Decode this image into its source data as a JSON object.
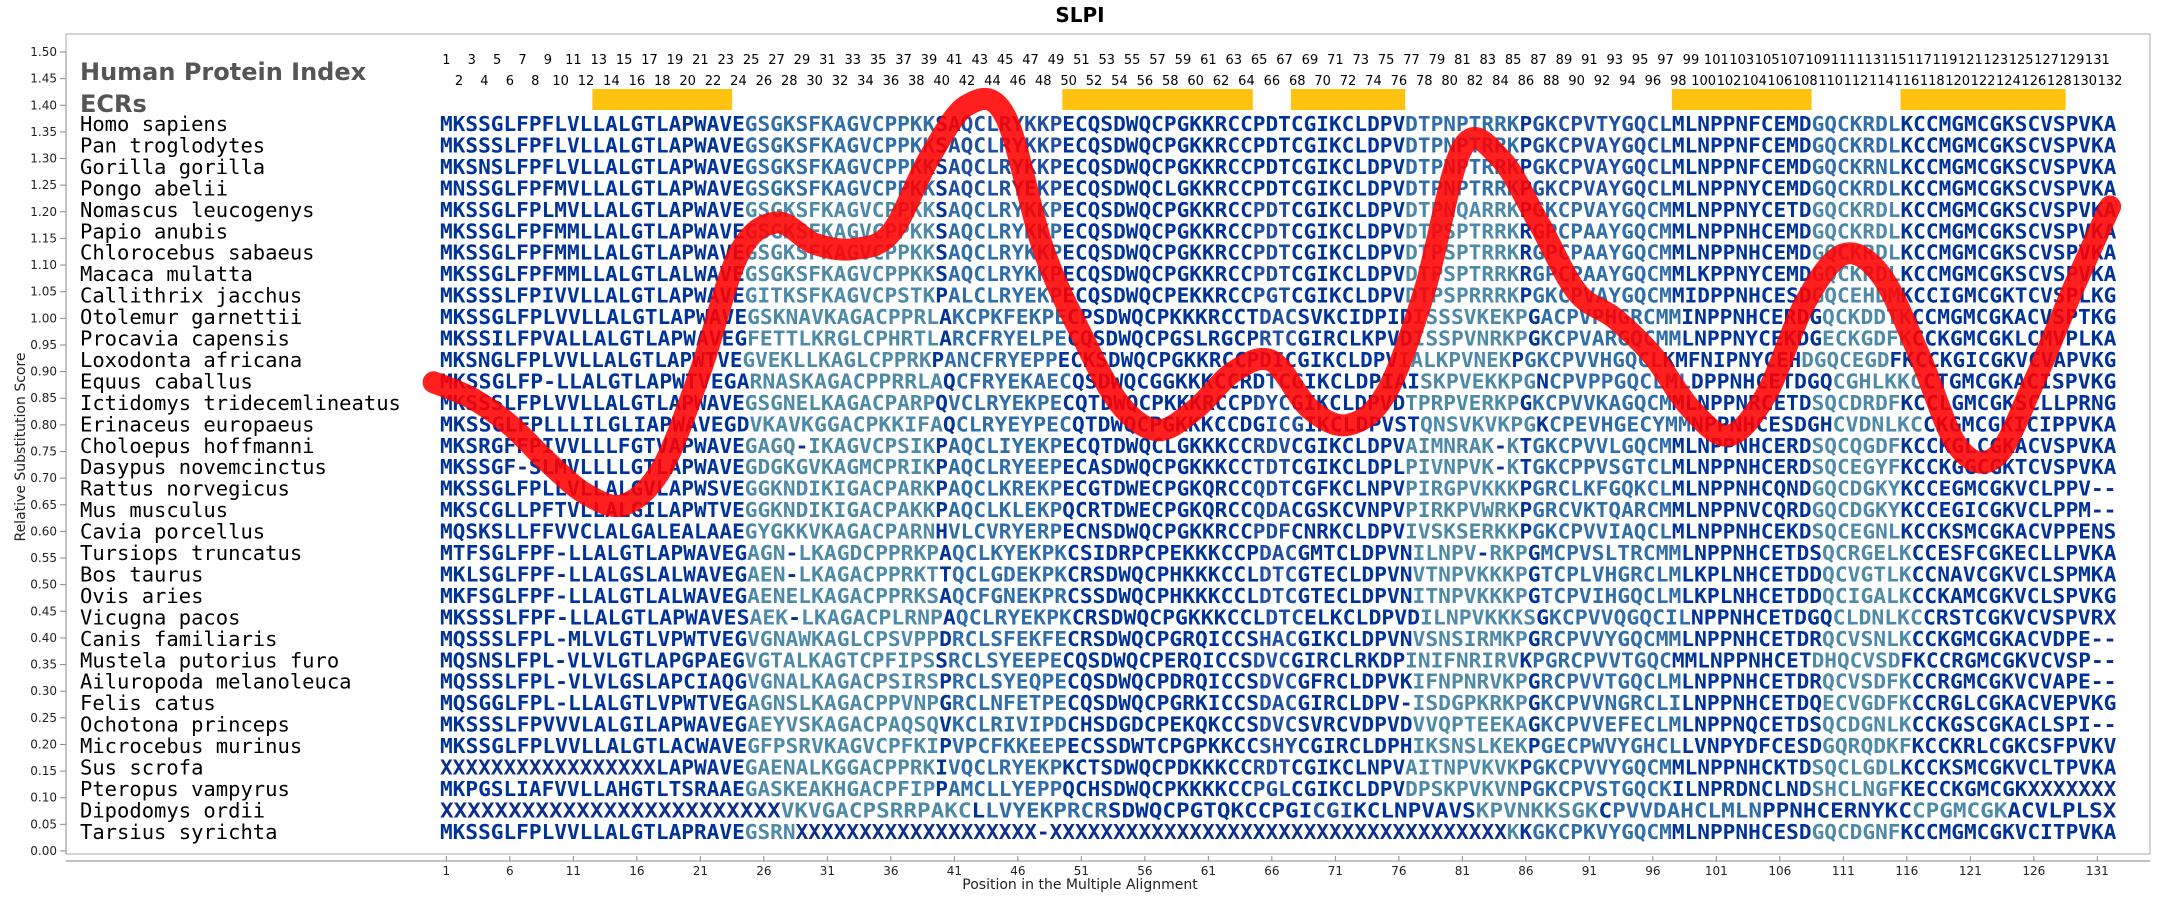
{
  "chart_data": {
    "type": "line",
    "title": "SLPI",
    "xlabel": "Position in the Multiple Alignment",
    "ylabel": "Relative Substitution Score",
    "legend": [
      "Human Protein Index",
      "ECRs"
    ],
    "ylim": [
      0.0,
      1.5
    ],
    "y_ticks": [
      "0.00",
      "0.05",
      "0.10",
      "0.15",
      "0.20",
      "0.25",
      "0.30",
      "0.35",
      "0.40",
      "0.45",
      "0.50",
      "0.55",
      "0.60",
      "0.65",
      "0.70",
      "0.75",
      "0.80",
      "0.85",
      "0.90",
      "0.95",
      "1.00",
      "1.05",
      "1.10",
      "1.15",
      "1.20",
      "1.25",
      "1.30",
      "1.35",
      "1.40",
      "1.45",
      "1.50"
    ],
    "x_ticks": [
      "1",
      "6",
      "11",
      "16",
      "21",
      "26",
      "31",
      "36",
      "41",
      "46",
      "51",
      "56",
      "61",
      "66",
      "71",
      "76",
      "81",
      "86",
      "91",
      "96",
      "101",
      "106",
      "111",
      "116",
      "121",
      "126",
      "131"
    ],
    "xlim": [
      1,
      132
    ],
    "human_index_odd": [
      "1",
      "3",
      "5",
      "7",
      "9",
      "11",
      "13",
      "15",
      "17",
      "19",
      "21",
      "23",
      "25",
      "27",
      "29",
      "31",
      "33",
      "35",
      "37",
      "39",
      "41",
      "43",
      "45",
      "47",
      "49",
      "51",
      "53",
      "55",
      "57",
      "59",
      "61",
      "63",
      "65",
      "67",
      "69",
      "71",
      "73",
      "75",
      "77",
      "79",
      "81",
      "83",
      "85",
      "87",
      "89",
      "91",
      "93",
      "95",
      "97",
      "99",
      "101",
      "103",
      "105",
      "107",
      "109",
      "111",
      "113",
      "115",
      "117",
      "119",
      "121",
      "123",
      "125",
      "127",
      "129",
      "131"
    ],
    "human_index_even": [
      "2",
      "4",
      "6",
      "8",
      "10",
      "12",
      "14",
      "16",
      "18",
      "20",
      "22",
      "24",
      "26",
      "28",
      "30",
      "32",
      "34",
      "36",
      "38",
      "40",
      "42",
      "44",
      "46",
      "48",
      "50",
      "52",
      "54",
      "56",
      "58",
      "60",
      "62",
      "64",
      "66",
      "68",
      "70",
      "72",
      "74",
      "76",
      "78",
      "80",
      "82",
      "84",
      "86",
      "88",
      "90",
      "92",
      "94",
      "96",
      "98",
      "100",
      "102",
      "104",
      "106",
      "108",
      "110",
      "112",
      "114",
      "116",
      "118",
      "120",
      "122",
      "124",
      "126",
      "128",
      "130",
      "132"
    ],
    "ecrs": [
      [
        13,
        23
      ],
      [
        50,
        64
      ],
      [
        68,
        76
      ],
      [
        98,
        108
      ],
      [
        116,
        128
      ]
    ],
    "series": [
      {
        "x": [
          0,
          3,
          6,
          9,
          12,
          15,
          18,
          21,
          24,
          27,
          30,
          33,
          36,
          39,
          42,
          45,
          48,
          51,
          54,
          57,
          60,
          63,
          66,
          69,
          72,
          75,
          78,
          81,
          84,
          87,
          90,
          93,
          96,
          99,
          102,
          105,
          108,
          111,
          114,
          117,
          120,
          123,
          126,
          129,
          132
        ],
        "y": [
          0.88,
          0.85,
          0.8,
          0.73,
          0.67,
          0.65,
          0.72,
          0.9,
          1.12,
          1.18,
          1.14,
          1.13,
          1.16,
          1.3,
          1.4,
          1.38,
          1.13,
          0.97,
          0.84,
          0.79,
          0.83,
          0.9,
          0.92,
          0.83,
          0.8,
          0.86,
          1.05,
          1.32,
          1.3,
          1.18,
          1.05,
          1.0,
          0.93,
          0.83,
          0.78,
          0.86,
          1.03,
          1.12,
          1.08,
          0.93,
          0.76,
          0.74,
          0.88,
          1.05,
          1.21
        ]
      }
    ],
    "species": [
      {
        "name": "Homo sapiens",
        "seq": "MKSSGLFPFLVLLALGTLAPWAVEGSGKSFKAGVCPPKKSAQCLRYKKPECQSDWQCPGKKRCCPDTCGIKCLDPVDTPNPTRRKPGKCPVTYGQCLMLNPPNFCEMDGQCKRDLKCCMGMCGKSCVSPVKA"
      },
      {
        "name": "Pan troglodytes",
        "seq": "MKSSSLFPFLVLLALGTLAPWAVEGSGKSFKAGVCPPKKSAQCLRYKKPECQSDWQCPGKKRCCPDTCGIKCLDPVDTPNPTRRKPGKCPVAYGQCLMLNPPNFCEMDGQCKRDLKCCMGMCGKSCVSPVKA"
      },
      {
        "name": "Gorilla gorilla",
        "seq": "MKSNSLFPFLVLLALGTLAPWAVEGSGKSFKAGVCPPKKSAQCLRYKKPECQSDWQCPGKKRCCPDTCGIKCLDPVDTPNPTRRKPGKCPVAYGQCLMLNPPNFCEMDGQCKRNLKCCMGMCGKSCVSPVKA"
      },
      {
        "name": "Pongo abelii",
        "seq": "MNSSGLFPFMVLLALGTLAPWAVEGSGKSFKAGVCPPKKSAQCLRYEKPECQSDWQCLGKKRCCPDTCGIKCLDPVDTPNPTRRKPGKCPVAYGQCLMLNPPNYCEMDGQCKRDLKCCMGMCGKSCVSPVKA"
      },
      {
        "name": "Nomascus leucogenys",
        "seq": "MKSSGLFPLMVLLALGTLAPWAVEGSGKSFKAGVCPPKKSAQCLRYKKPECQSDWQCPGKKRCCPDTCGIKCLDPVDTPNQARRKPGKCPVAYGQCMMLNPPNYCETDGQCKRDLKCCMGMCGKSCVSPVKA"
      },
      {
        "name": "Papio anubis",
        "seq": "MKSSGLFPFMMLLALGTLAPWAVEGSGKSFKAGVCPPKKSAQCLRYKKPECQSDWQCPGKKRCCPDTCGIKCLDPVDTPSPTRRKRGPCPAAYGQCMMLNPPNHCEMDGQCKRDLKCCMGMCGKSCVSPVKA"
      },
      {
        "name": "Chlorocebus sabaeus",
        "seq": "MKSSGLFPFMMLLALGTLAPWAVEGSGKSFKAGVCPPKKSAQCLRYKKPECQSDWQCPGKKRCCPDTCGIKCLDPVDTPSPTRRKRGPCPAAYGQCMMLNPPNHCEMDGQCKRDLKCCMGMCGKSCVSPVKA"
      },
      {
        "name": "Macaca mulatta",
        "seq": "MKSSGLFPFMMLLALGTLALWAVEGSGKSFKAGVCPPKKSAQCLRYKKPECQSDWQCPGKKRCCPDTCGIKCLDPVDTPSPTRRKRGPCPAAYGQCMMLKPPNYCEMDGQCKRDLKCCMGMCGKSCVSPVKA"
      },
      {
        "name": "Callithrix jacchus",
        "seq": "MKSSSLFPIVVLLALGTLAPWAVEGITKSFKAGVCPSTKPALCLRYEKPECQSDWQCPEKKRCCPGTCGIKCLDPVDTPSPRRRKPGKCPVAYGQCMMIDPPNHCESDGQCEHDMKCCIGMCGKTCVSPLKG"
      },
      {
        "name": "Otolemur garnettii",
        "seq": "MKSSGLFPLVVLLALGTLAPWAVEGSKNAVKAGACPPRLAKCPKFEKPECPSDWQCPKKKRCCTDACSVKCIDPIDISSSVKEKPGACPVPHGRCMMINPPNHCERDGQCKDDTKCCMGMCGKACVSPTKG"
      },
      {
        "name": "Procavia capensis",
        "seq": "MKSSILFPVALLALGTLAPWAVEGFETTLKRGLCPHRTLARCFRYELPECQSDWQCPGSLRGCPRTCGIRCLKPVDISSPVNRKPGKCPVARGQCMMLNPPNYCEKDGECKGDFKCCKGMCGKLCMVPLKA"
      },
      {
        "name": "Loxodonta africana",
        "seq": "MKSNGLFPLVVLLALGTLAPWTVEGVEKLLKAGLCPPRKPANCFRYEPPECKSDWQCPGKKRCCPDICGIKCLDPVIALKPVNEKPGKCPVVHGQCLKMFNIPNYCEHDGQCEGDFKCCKGICGKVCVAPVKG"
      },
      {
        "name": "Equus caballus",
        "seq": "MKSSGLFP-LLALGTLAPWTVEGARNASKAGACPPRRLAQCFRYEKAECQSDWQCGGKKKCCRDTCGIKCLDPIAISKPVEKKPGNCPVPPGQCLMLDPPNHCETDGQCGHLKKCCTGMCGKACISPVKG"
      },
      {
        "name": "Ictidomys tridecemlineatus",
        "seq": "MKSSSLFPLVVLLALGTLAPWAVEGSGNELKAGACPARPQVCLRYEKPECQTDWQCPKKKRCCPDYCGIKCLDPVDTPRPVERKPGKCPVVKAGQCMMLNPPNRCETDSQCDRDFKCCLGMCGKSCLLPRNG"
      },
      {
        "name": "Erinaceus europaeus",
        "seq": "MKSSGLFPLLLILGLIAPWAVEGDVKAVKGGACPKKIFAQCLRYEYPECQTDWQCPGKKKCCDGICGIKCLDPVSTQNSVKVKPGKCPEVHGECYMMNPPNHCESDGHCVDNLKCCKGMCGKICIPPVKA"
      },
      {
        "name": "Choloepus hoffmanni",
        "seq": "MKSRGFFPIVVLLLFGTVAPWAVEGAGQ-IKAGVCPSIKPAQCLIYEKPECQTDWQCLGKKKCCRDVCGIKCLDPVAIMNRAK-KTGKCPVVLGQCMMLNPPNHCERDSQCQGDFKCCKGLCGKACVSPVKA"
      },
      {
        "name": "Dasypus novemcinctus",
        "seq": "MKSSGF-SLMVLLLLGTLAPWAVEGDGKGVKAGMCPRIKPAQCLRYEEPECASDWQCPGKKKCCTDTCGIKCLDPLPIVNPVK-KTGKCPPVSGTCLMLNPPNHCERDSQCEGYFKCCKGGCGKTCVSPVKA"
      },
      {
        "name": "Rattus norvegicus",
        "seq": "MKSSGLFPLLVLLALGVLAPWSVEGGKNDIKIGACPARKPAQCLKREKPECGTDWECPGKQRCCQDTCGFKCLNPVPIRGPVKKKPGRCLKFGQKCLMLNPPNHCQNDGQCDGKYKCCEGMCGKVCLPPV--"
      },
      {
        "name": "Mus musculus",
        "seq": "MKSCGLLPFTVLLALGILAPWTVEGGKNDIKIGACPAKKPAQCLKLEKPQCRTDWECPGKQRCCQDACGSKCVNPVPIRKPVWRKPGRCVKTQARCMMLNPPNVCQRDGQCDGKYKCCEGICGKVCLPPM--"
      },
      {
        "name": "Cavia porcellus",
        "seq": "MQSKSLLFFVVCLALGALEALAAEGYGKKVKAGACPARNHVLCVRYERPECNSDWQCPGKKRCCPDFCNRKCLDPVIVSKSERKKPGKCPVVIAQCLMLNPPNHCEKDSQCEGNLKCCKSMCGKACVPPENS"
      },
      {
        "name": "Tursiops truncatus",
        "seq": "MTFSGLFPF-LLALGTLAPWAVEGAGN-LKAGDCPPRKPAQCLKYEKPKCSIDRPCPEKKKCCPDACGMTCLDPVNILNPV-RKPGMCPVSLTRCMMLNPPNHCETDSQCRGELKCCESFCGKECLLPVKA"
      },
      {
        "name": "Bos taurus",
        "seq": "MKLSGLFPF-LLALGSLALWAVEGAEN-LKAGACPPRKTTQCLGDEKPKCRSDWQCPHKKKCCLDTCGTECLDPVNVTNPVKKKPGTCPLVHGRCLMLKPLNHCETDDQCVGTLKCCNAVCGKVCLSPMKA"
      },
      {
        "name": "Ovis aries",
        "seq": "MKFSGLFPF-LLALGTLALWAVEGAENELKAGACPPRKSAQCFGNEKPRCSSDWQCPHKKKCCLDTCGTECLDPVNITNPVKKKPGTCPVIHGQCLMLKPLNHCETDDQCIGALKCCKAMCGKVCLSPVKG"
      },
      {
        "name": "Vicugna pacos",
        "seq": "MKSSSLFPF-LLALGTLAPWAVESAEK-LKAGACPLRNPAQCLRYEKPKCRSDWQCPGKKKCCLDTCELKCLDPVDILNPVKKKSGKCPVVQGQCILNPPNHCETDGQCLDNLKCCRSTCGKVCVSPVRX"
      },
      {
        "name": "Canis familiaris",
        "seq": "MQSSSLFPL-MLVLGTLVPWTVEGVGNAWKAGLCPSVPPDRCLSFEKFECRSDWQCPGRQICCSHACGIKCLDPVNVSNSIRMKPGRCPVVYGQCMMLNPPNHCETDRQCVSNLKCCKGMCGKACVDPE--"
      },
      {
        "name": "Mustela putorius furo",
        "seq": "MQSNSLFPL-VLVLGTLAPGPAEGVGTALKAGTCPFIPSSRCLSYEEPECQSDWQCPERQICCSDVCGIRCLRKDPINIFNRIRVKPGRCPVVTGQCMMLNPPNHCETDHQCVSDFKCCRGMCGKVCVSP--"
      },
      {
        "name": "Ailuropoda melanoleuca",
        "seq": "MQSSSLFPL-VLVLGSLAPCIAQGVGNALKAGACPSIRSPRCLSYEQPECQSDWQCPDRQICCSDVCGFRCLDPVKIFNPNRVKPGRCPVVTGQCLMLNPPNHCETDRQCVSDFKCCRGMCGKVCVAPE--"
      },
      {
        "name": "Felis catus",
        "seq": "MQSGGLFPL-LLALGTLVPWTVEGAGNSLKAGACPPVNPGRCLNFETPECQSDWQCPGRKICCSDACGIRCLDPV-ISDGPKRKPGKCPVVNGRCLILNPPNHCETDQECVGDFKCCRGLCGKACVEPVKG"
      },
      {
        "name": "Ochotona princeps",
        "seq": "MKSSSLFPVVVLALGILAPWAVEGAEYVSKAGACPAQSQVKCLRIVIPDCHSDGDCPEKQKCCSDVCSVRCVDPVDVVQPTEEKAGKCPVVEFECLMLNPPNQCETDSQCDGNLKCCKGSCGKACLSPI--"
      },
      {
        "name": "Microcebus murinus",
        "seq": "MKSSGLFPLVVLLALGTLACWAVEGFPSRVKAGVCPFKIPVPCFKKEEPECSSDWTCPGPKKCCSHYCGIRCLDPHIKSNSLKEKPGECPWVYGHCLLVNPYDFCESDGQRQDKFKCCKRLCGKCSFPVKV"
      },
      {
        "name": "Sus scrofa",
        "seq": "XXXXXXXXXXXXXXXXXLAPWAVEGAENALKGGACPPRKIVQCLRYEKPKCTSDWQCPDKKKCCRDTCGIKCLNPVAITNPVKVKPGKCPVVYGQCMMLNPPNHCKTDSQCLGDLKCCKSMCGKVCLTPVKA"
      },
      {
        "name": "Pteropus vampyrus",
        "seq": "MKPGSLIAFVVLLAHGTLTSRAAEGASKEAKHGACPFIPPAMCLLYEPPQCHSDWQCPKKKKCCPGLCGIKCLDPVDPSKPVKVNPGKCPVSTGQCKILNPRDNCLNDSHCLNGFKECCKGMCGKXXXXXXX"
      },
      {
        "name": "Dipodomys ordii",
        "seq": "XXXXXXXXXXXXXXXXXXXXXXXXXVKVGACPSRRPAKCLLVYEKPRCRSDWQCPGTQKCCPGICGIKCLNPVAVSKPVNKKSGKCPVVDAHCLMLNPPNHCERNYKCCPGMCGKACVLPLSX"
      },
      {
        "name": "Tarsius syrichta",
        "seq": "MKSSGLFPLVVLLALGTLAPRAVEGSRNXXXXXXXXXXXXXXXXXXX-XXXXXXXXXXXXXXXXXXXXXXXXXXXXXXXXXXXXKKGKCPKVYGQCMMLNPPNHCESDGQCDGNFKCCMGMCGKVCITPVKA"
      }
    ]
  }
}
